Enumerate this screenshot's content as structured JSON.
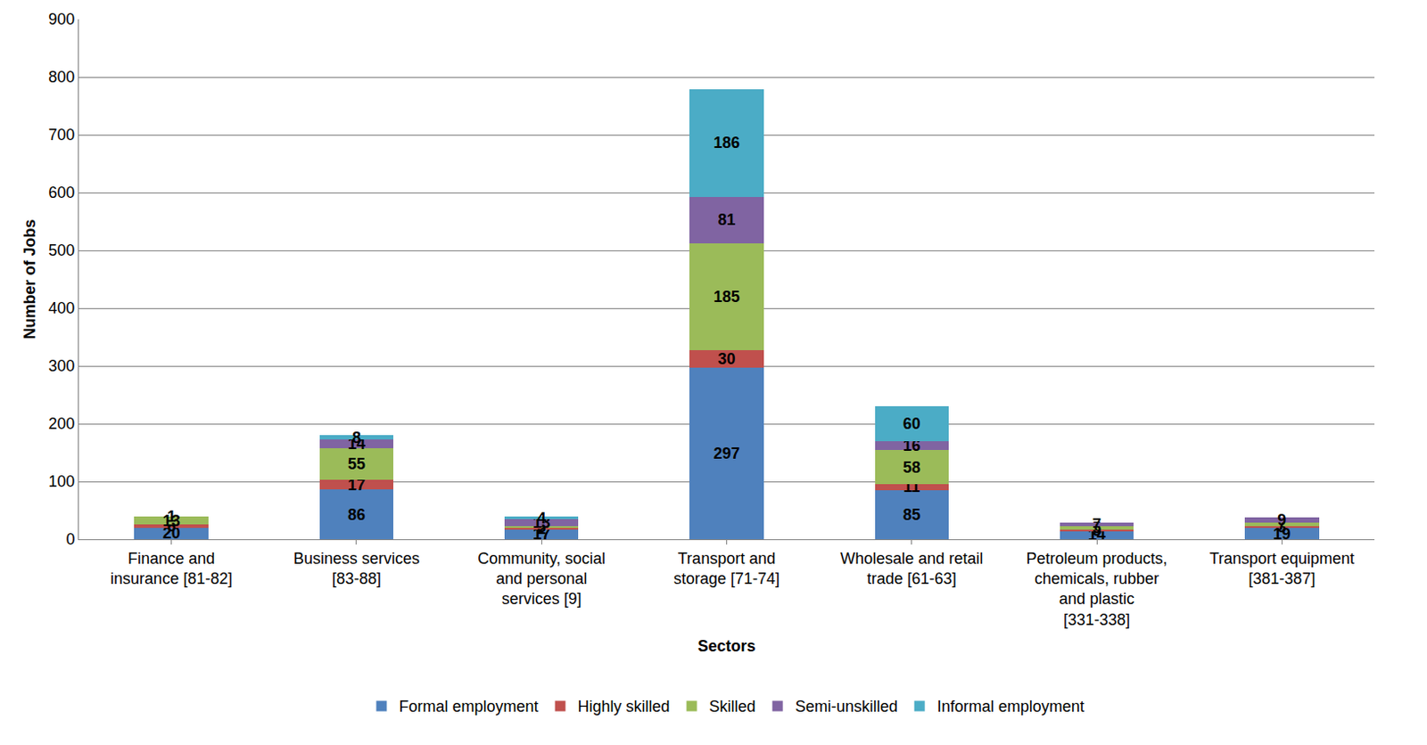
{
  "chart_data": {
    "type": "bar",
    "stacked": true,
    "data_labels": true,
    "grid": true,
    "legend": "bottom",
    "x_label": "Sectors",
    "y_label": "Number of Jobs",
    "categories": [
      "Finance and insurance [81-82]",
      "Business services [83-88]",
      "Community, social and personal services [9]",
      "Transport and storage [71-74]",
      "Wholesale and retail trade [61-63]",
      "Petroleum products, chemicals, rubber and plastic [331-338]",
      "Transport equipment [381-387]"
    ],
    "series": [
      {
        "name": "Formal employment",
        "color": "#4F81BD",
        "values": [
          20,
          86,
          17,
          297,
          85,
          14,
          19
        ]
      },
      {
        "name": "Highly skilled",
        "color": "#C0504D",
        "values": [
          6,
          17,
          2,
          30,
          11,
          3,
          3
        ]
      },
      {
        "name": "Skilled",
        "color": "#9BBB59",
        "values": [
          13,
          55,
          3,
          185,
          58,
          5,
          7
        ]
      },
      {
        "name": "Semi-unskilled",
        "color": "#8064A2",
        "values": [
          1,
          14,
          13,
          81,
          16,
          7,
          9
        ]
      },
      {
        "name": "Informal employment",
        "color": "#4BACC6",
        "values": [
          0,
          8,
          4,
          186,
          60,
          0,
          0
        ]
      }
    ],
    "ylim": [
      0,
      900
    ],
    "yticks": [
      0,
      100,
      200,
      300,
      400,
      500,
      600,
      700,
      800,
      900
    ]
  }
}
